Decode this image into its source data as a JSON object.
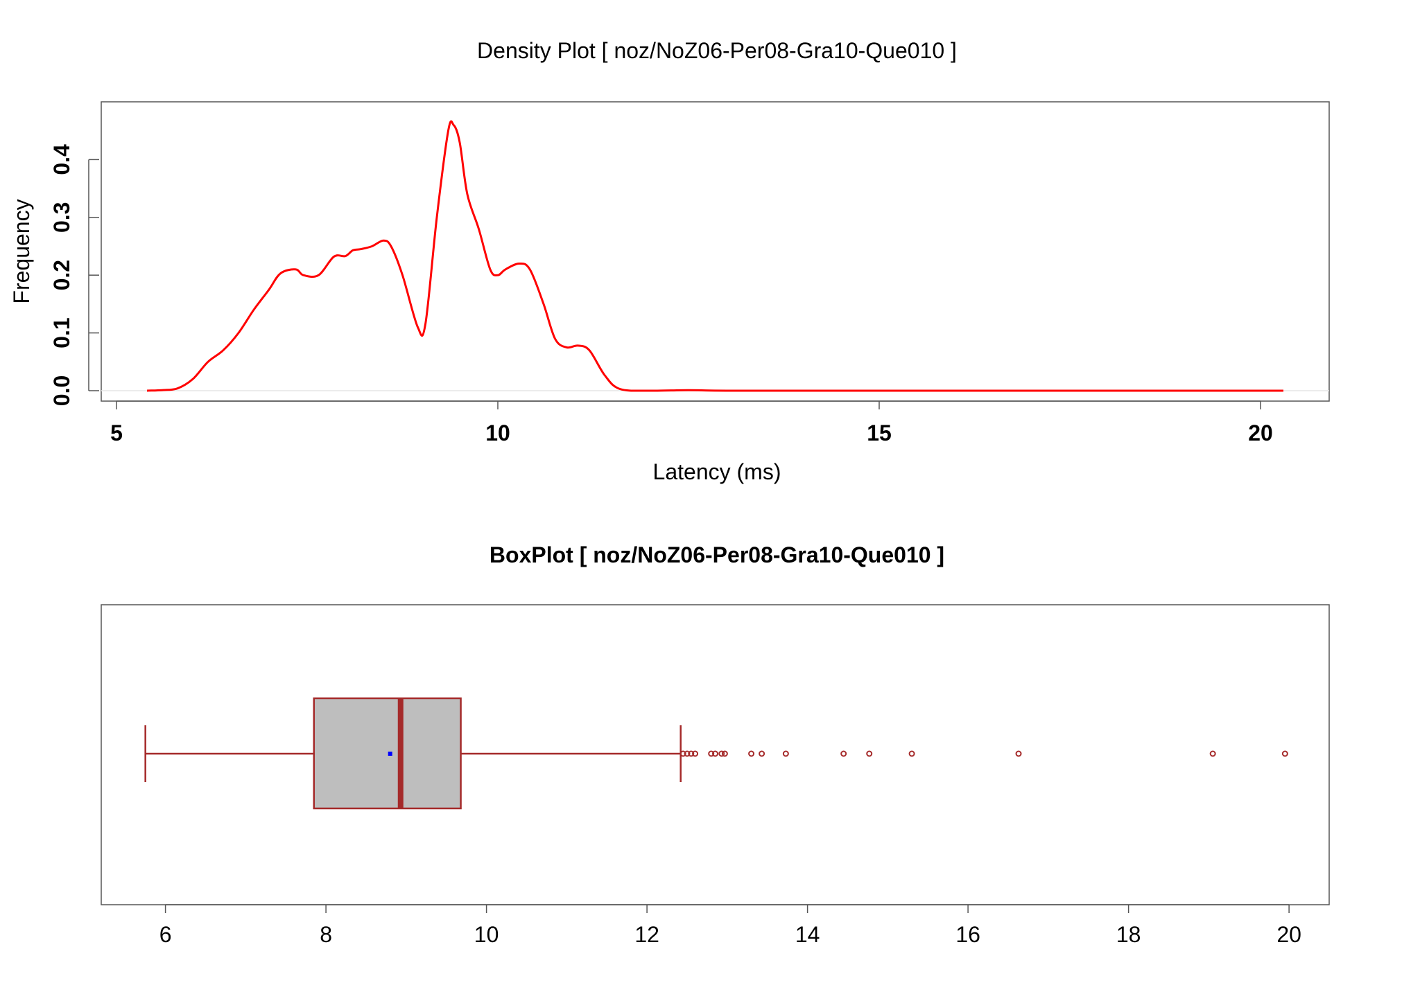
{
  "chart_data": [
    {
      "type": "line",
      "title": "Density Plot [ noz/NoZ06-Per08-Gra10-Que010 ]",
      "xlabel": "Latency (ms)",
      "ylabel": "Frequency",
      "xlim": [
        4.8,
        20.9
      ],
      "ylim": [
        -0.018,
        0.5
      ],
      "x_ticks": [
        5,
        10,
        15,
        20
      ],
      "y_ticks": [
        0.0,
        0.1,
        0.2,
        0.3,
        0.4
      ],
      "x_tick_labels": [
        "5",
        "10",
        "15",
        "20"
      ],
      "y_tick_labels": [
        "0.0",
        "0.1",
        "0.2",
        "0.3",
        "0.4"
      ],
      "line_color": "#ff0000",
      "series": [
        {
          "x": [
            5.4,
            5.6,
            5.8,
            6.0,
            6.2,
            6.4,
            6.6,
            6.8,
            7.0,
            7.15,
            7.35,
            7.45,
            7.65,
            7.85,
            8.0,
            8.1,
            8.2,
            8.35,
            8.5,
            8.6,
            8.75,
            8.95,
            9.05,
            9.2,
            9.35,
            9.42,
            9.5,
            9.6,
            9.75,
            9.9,
            10.0,
            10.1,
            10.28,
            10.42,
            10.6,
            10.75,
            10.9,
            11.05,
            11.2,
            11.4,
            11.6,
            12.0,
            12.5,
            13.0,
            15.0,
            20.3
          ],
          "y": [
            0.0,
            0.001,
            0.004,
            0.02,
            0.05,
            0.07,
            0.1,
            0.14,
            0.175,
            0.203,
            0.21,
            0.2,
            0.2,
            0.232,
            0.233,
            0.243,
            0.245,
            0.25,
            0.26,
            0.25,
            0.2,
            0.11,
            0.115,
            0.3,
            0.45,
            0.46,
            0.43,
            0.34,
            0.28,
            0.21,
            0.2,
            0.21,
            0.22,
            0.21,
            0.15,
            0.09,
            0.075,
            0.078,
            0.07,
            0.027,
            0.003,
            0.0,
            0.001,
            0.0,
            0.0,
            0.0
          ]
        }
      ]
    },
    {
      "type": "box",
      "title": "BoxPlot [ noz/NoZ06-Per08-Gra10-Que010 ]",
      "xlim": [
        5.2,
        20.5
      ],
      "x_ticks": [
        6,
        8,
        10,
        12,
        14,
        16,
        18,
        20
      ],
      "x_tick_labels": [
        "6",
        "8",
        "10",
        "12",
        "14",
        "16",
        "18",
        "20"
      ],
      "box_fill": "#bebebe",
      "box_border": "#a52a2a",
      "mean_color": "#0000ff",
      "stats": {
        "whisker_low": 5.75,
        "q1": 7.85,
        "median": 8.93,
        "q3": 9.68,
        "whisker_high": 12.42,
        "mean": 8.8
      },
      "outliers": [
        12.45,
        12.5,
        12.55,
        12.6,
        12.8,
        12.85,
        12.93,
        12.97,
        13.3,
        13.43,
        13.73,
        14.45,
        14.77,
        15.3,
        16.63,
        19.05,
        19.95
      ]
    }
  ]
}
